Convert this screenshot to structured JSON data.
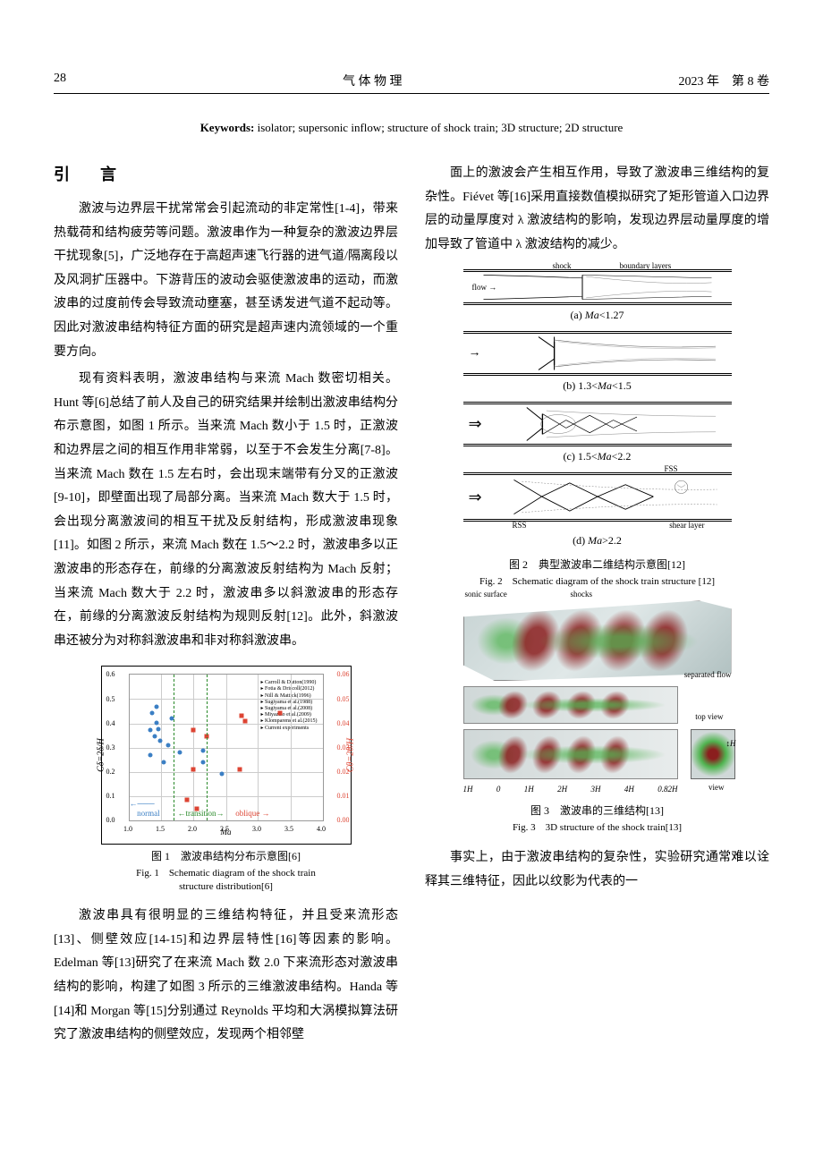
{
  "header": {
    "page_num": "28",
    "journal": "气 体 物 理",
    "issue": "2023 年　第 8 卷"
  },
  "keywords": {
    "label": "Keywords",
    "text": "isolator; supersonic inflow; structure of shock train; 3D structure; 2D structure"
  },
  "section_title": "引　言",
  "left_paras": {
    "p1": "激波与边界层干扰常常会引起流动的非定常性[1-4]，带来热载荷和结构疲劳等问题。激波串作为一种复杂的激波边界层干扰现象[5]，广泛地存在于高超声速飞行器的进气道/隔离段以及风洞扩压器中。下游背压的波动会驱使激波串的运动，而激波串的过度前传会导致流动壅塞，甚至诱发进气道不起动等。因此对激波串结构特征方面的研究是超声速内流领域的一个重要方向。",
    "p2": "现有资料表明，激波串结构与来流 Mach 数密切相关。Hunt 等[6]总结了前人及自己的研究结果并绘制出激波串结构分布示意图，如图 1 所示。当来流 Mach 数小于 1.5 时，正激波和边界层之间的相互作用非常弱，以至于不会发生分离[7-8]。当来流 Mach 数在 1.5 左右时，会出现末端带有分叉的正激波[9-10]，即壁面出现了局部分离。当来流 Mach 数大于 1.5 时，会出现分离激波间的相互干扰及反射结构，形成激波串现象[11]。如图 2 所示，来流 Mach 数在 1.5～2.2 时，激波串多以正激波串的形态存在，前缘的分离激波反射结构为 Mach 反射；当来流 Mach 数大于 2.2 时，激波串多以斜激波串的形态存在，前缘的分离激波反射结构为规则反射[12]。此外，斜激波串还被分为对称斜激波串和非对称斜激波串。",
    "p3": "激波串具有很明显的三维结构特征，并且受来流形态[13]、侧壁效应[14-15]和边界层特性[16]等因素的影响。Edelman 等[13]研究了在来流 Mach 数 2.0 下来流形态对激波串结构的影响，构建了如图 3 所示的三维激波串结构。Handa 等[14]和 Morgan 等[15]分别通过 Reynolds 平均和大涡模拟算法研究了激波串结构的侧壁效应，发现两个相邻壁"
  },
  "right_paras": {
    "p1": "面上的激波会产生相互作用，导致了激波串三维结构的复杂性。Fiévet 等[16]采用直接数值模拟研究了矩形管道入口边界层的动量厚度对 λ 激波结构的影响，发现边界层动量厚度的增加导致了管道中 λ 激波结构的减少。",
    "p2": "事实上，由于激波串结构的复杂性，实验研究通常难以诠释其三维特征，因此以纹影为代表的一"
  },
  "fig1": {
    "caption_cn": "图 1　激波串结构分布示意图[6]",
    "caption_en1": "Fig. 1　Schematic diagram of the shock train",
    "caption_en2": "structure distribution[6]",
    "xlabel": "Ma",
    "ylabel_left": "Cδ=2δ/H",
    "ylabel_right": "Cθ=2θ/H",
    "xticks": [
      "1.0",
      "1.5",
      "2.0",
      "2.5",
      "3.0",
      "3.5",
      "4.0"
    ],
    "yticks_l": [
      "0.0",
      "0.1",
      "0.2",
      "0.3",
      "0.4",
      "0.5",
      "0.6"
    ],
    "yticks_r": [
      "0.00",
      "0.01",
      "0.02",
      "0.03",
      "0.04",
      "0.05",
      "0.06"
    ],
    "region_normal": "normal",
    "region_transition": "transition",
    "region_oblique": "oblique",
    "legend_items": [
      "Carroll & Dutton(1990)",
      "Fotia & Driscoll(2012)",
      "Nill & Mattick(1996)",
      "Sugiyama et al.(1988)",
      "Sugiyama et al.(2008)",
      "Miyazato et al.(2009)",
      "Klomparens et al.(2015)",
      "Current experiments"
    ],
    "blue_points": [
      {
        "x": 11,
        "y": 45
      },
      {
        "x": 12,
        "y": 74
      },
      {
        "x": 14,
        "y": 67
      },
      {
        "x": 15,
        "y": 63
      },
      {
        "x": 18,
        "y": 40
      },
      {
        "x": 13,
        "y": 58
      },
      {
        "x": 14,
        "y": 78
      },
      {
        "x": 20,
        "y": 52
      },
      {
        "x": 26,
        "y": 47
      },
      {
        "x": 22,
        "y": 70
      },
      {
        "x": 38,
        "y": 48
      },
      {
        "x": 38,
        "y": 40
      },
      {
        "x": 48,
        "y": 32
      },
      {
        "x": 11,
        "y": 62
      },
      {
        "x": 16,
        "y": 55
      }
    ],
    "red_points": [
      {
        "x": 30,
        "y": 14
      },
      {
        "x": 33,
        "y": 62
      },
      {
        "x": 33,
        "y": 35
      },
      {
        "x": 40,
        "y": 58
      },
      {
        "x": 60,
        "y": 68
      },
      {
        "x": 57,
        "y": 35
      },
      {
        "x": 58,
        "y": 72
      },
      {
        "x": 78,
        "y": 74
      },
      {
        "x": 35,
        "y": 8
      }
    ],
    "colors": {
      "grid": "#cccccc",
      "blue": "#3b7fc4",
      "red": "#dd4433",
      "normal_color": "#3b7fc4",
      "transition_color": "#2a8a2a",
      "oblique_color": "#dd4433"
    }
  },
  "fig2": {
    "caption_cn": "图 2　典型激波串二维结构示意图[12]",
    "caption_en": "Fig. 2　Schematic diagram of the shock train structure [12]",
    "a": {
      "label": "(a)  Ma<1.27",
      "flow": "flow",
      "shock": "shock",
      "boundary": "boundary layers"
    },
    "b": {
      "label": "(b)  1.3<Ma<1.5"
    },
    "c": {
      "label": "(c)  1.5<Ma<2.2"
    },
    "d": {
      "label": "(d)  Ma>2.2",
      "fss": "FSS",
      "rss": "RSS",
      "shear": "shear layer"
    }
  },
  "fig3": {
    "caption_cn": "图 3　激波串的三维结构[13]",
    "caption_en": "Fig. 3　3D structure of the shock train[13]",
    "sonic": "sonic surface",
    "shocks": "shocks",
    "separated": "separated flow",
    "top_view": "top view",
    "side_view": "side view",
    "downstream": "downstream",
    "view": "view",
    "h_label": "H",
    "xticks": [
      "1H",
      "0",
      "1H",
      "2H",
      "3H",
      "4H",
      "0.82H"
    ]
  }
}
